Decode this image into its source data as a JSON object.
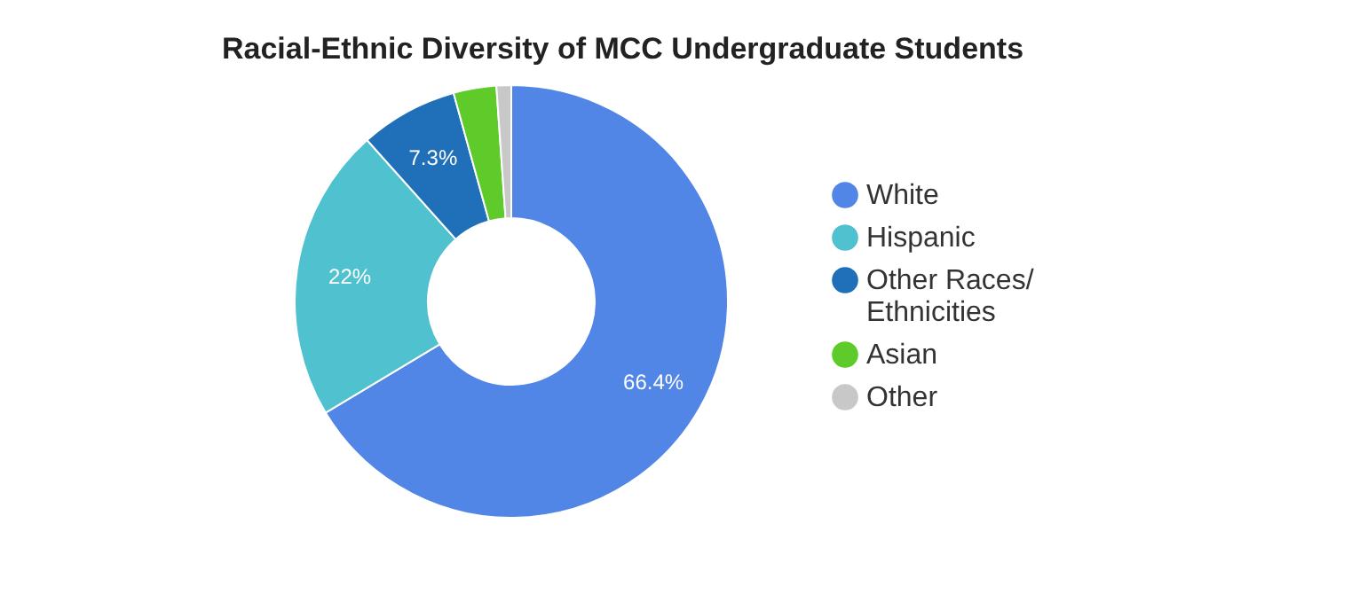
{
  "chart_data": {
    "type": "donut",
    "title": "Racial-Ethnic Diversity of MCC Undergraduate Students",
    "categories": [
      "White",
      "Hispanic",
      "Other Races/ Ethnicities",
      "Asian",
      "Other"
    ],
    "values": [
      66.4,
      22,
      7.3,
      3.2,
      1.1
    ],
    "colors": [
      "#5186e6",
      "#4fc1cf",
      "#1f70b8",
      "#5ecb2b",
      "#c8c8c8"
    ],
    "value_labels": [
      "66.4%",
      "22%",
      "7.3%",
      null,
      null
    ],
    "legend": "right"
  }
}
